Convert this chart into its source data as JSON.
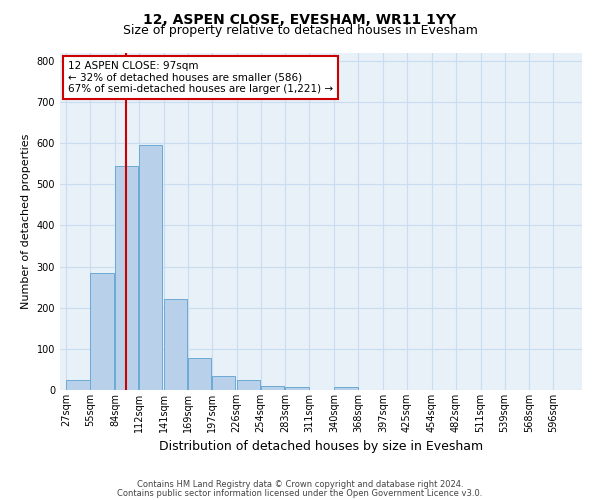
{
  "title": "12, ASPEN CLOSE, EVESHAM, WR11 1YY",
  "subtitle": "Size of property relative to detached houses in Evesham",
  "xlabel": "Distribution of detached houses by size in Evesham",
  "ylabel": "Number of detached properties",
  "footnote1": "Contains HM Land Registry data © Crown copyright and database right 2024.",
  "footnote2": "Contains public sector information licensed under the Open Government Licence v3.0.",
  "bin_labels": [
    "27sqm",
    "55sqm",
    "84sqm",
    "112sqm",
    "141sqm",
    "169sqm",
    "197sqm",
    "226sqm",
    "254sqm",
    "283sqm",
    "311sqm",
    "340sqm",
    "368sqm",
    "397sqm",
    "425sqm",
    "454sqm",
    "482sqm",
    "511sqm",
    "539sqm",
    "568sqm",
    "596sqm"
  ],
  "bin_left_edges": [
    27,
    55,
    84,
    112,
    141,
    169,
    197,
    226,
    254,
    283,
    311,
    340,
    368,
    397,
    425,
    454,
    482,
    511,
    539,
    568,
    596
  ],
  "bin_width": 28,
  "bar_values": [
    25,
    285,
    545,
    595,
    220,
    78,
    35,
    25,
    10,
    7,
    0,
    7,
    0,
    0,
    0,
    0,
    0,
    0,
    0,
    0,
    0
  ],
  "bar_color": "#b8d0ea",
  "bar_edge_color": "#6aaad4",
  "grid_color": "#c8ddf0",
  "annotation_box_facecolor": "#ffffff",
  "annotation_border_color": "#cc0000",
  "property_line_x": 97,
  "property_line_color": "#cc0000",
  "annotation_line1": "12 ASPEN CLOSE: 97sqm",
  "annotation_line2": "← 32% of detached houses are smaller (586)",
  "annotation_line3": "67% of semi-detached houses are larger (1,221) →",
  "ylim": [
    0,
    820
  ],
  "yticks": [
    0,
    100,
    200,
    300,
    400,
    500,
    600,
    700,
    800
  ],
  "xlim_left": 20,
  "xlim_right": 630,
  "background_color": "#e8f0f8",
  "title_fontsize": 10,
  "subtitle_fontsize": 9,
  "axis_label_fontsize": 8,
  "tick_fontsize": 7,
  "annotation_fontsize": 7.5,
  "footnote_fontsize": 6
}
